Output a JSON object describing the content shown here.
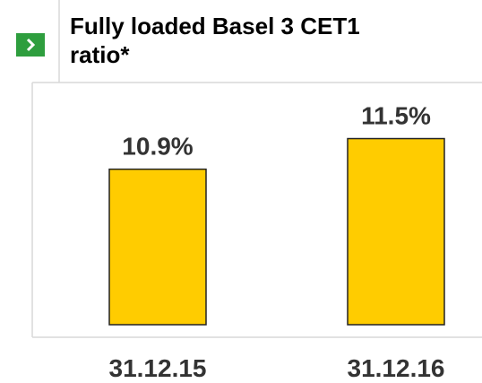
{
  "chart_data": {
    "type": "bar",
    "title": "Fully loaded Basel 3 CET1 ratio*",
    "categories": [
      "31.12.15",
      "31.12.16"
    ],
    "values": [
      10.9,
      11.5
    ],
    "value_labels": [
      "10.9%",
      "11.5%"
    ],
    "color": "#ffcc00",
    "ylim": [
      7.85,
      12.6
    ]
  }
}
